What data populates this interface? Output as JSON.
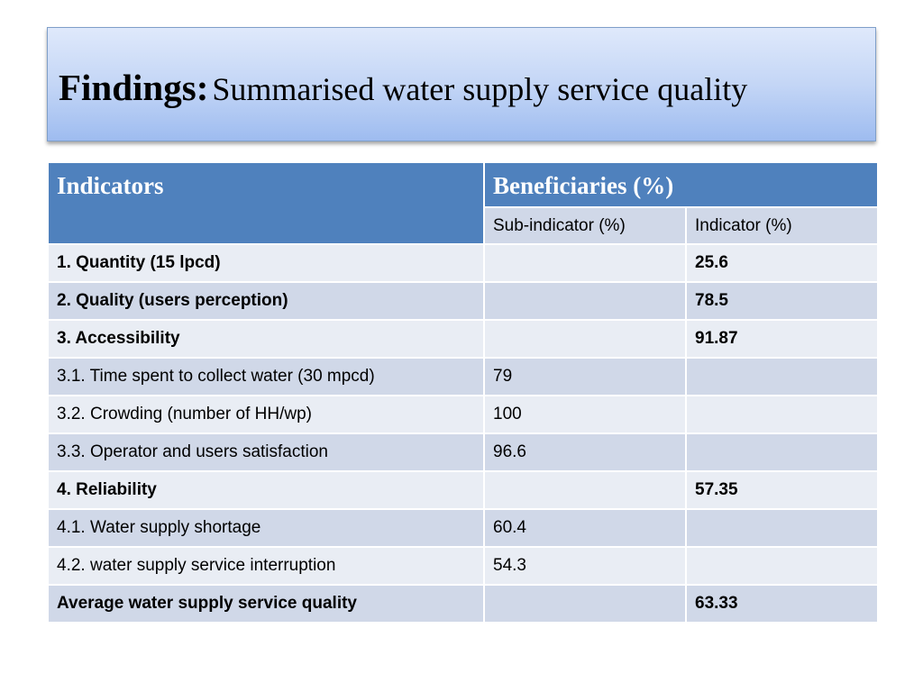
{
  "title": {
    "bold": "Findings:",
    "rest": "Summarised water supply service quality"
  },
  "table": {
    "header": {
      "indicators": "Indicators",
      "beneficiaries": "Beneficiaries (%)",
      "sub_indicator": "Sub-indicator (%)",
      "indicator": "Indicator (%)"
    },
    "rows": [
      {
        "label": "1. Quantity (15 lpcd)",
        "sub": "",
        "ind": "25.6",
        "bold": true
      },
      {
        "label": "2. Quality (users perception)",
        "sub": "",
        "ind": "78.5",
        "bold": true
      },
      {
        "label": "3. Accessibility",
        "sub": "",
        "ind": "91.87",
        "bold": true
      },
      {
        "label": "3.1. Time spent to collect water (30 mpcd)",
        "sub": "79",
        "ind": "",
        "bold": false
      },
      {
        "label": "3.2. Crowding (number of HH/wp)",
        "sub": "100",
        "ind": "",
        "bold": false
      },
      {
        "label": "3.3. Operator and users satisfaction",
        "sub": "96.6",
        "ind": "",
        "bold": false
      },
      {
        "label": "4. Reliability",
        "sub": "",
        "ind": "57.35",
        "bold": true
      },
      {
        "label": "4.1. Water supply shortage",
        "sub": "60.4",
        "ind": "",
        "bold": false
      },
      {
        "label": "4.2. water supply service interruption",
        "sub": "54.3",
        "ind": "",
        "bold": false
      },
      {
        "label": "Average water supply service quality",
        "sub": "",
        "ind": "63.33",
        "bold": true
      }
    ]
  }
}
